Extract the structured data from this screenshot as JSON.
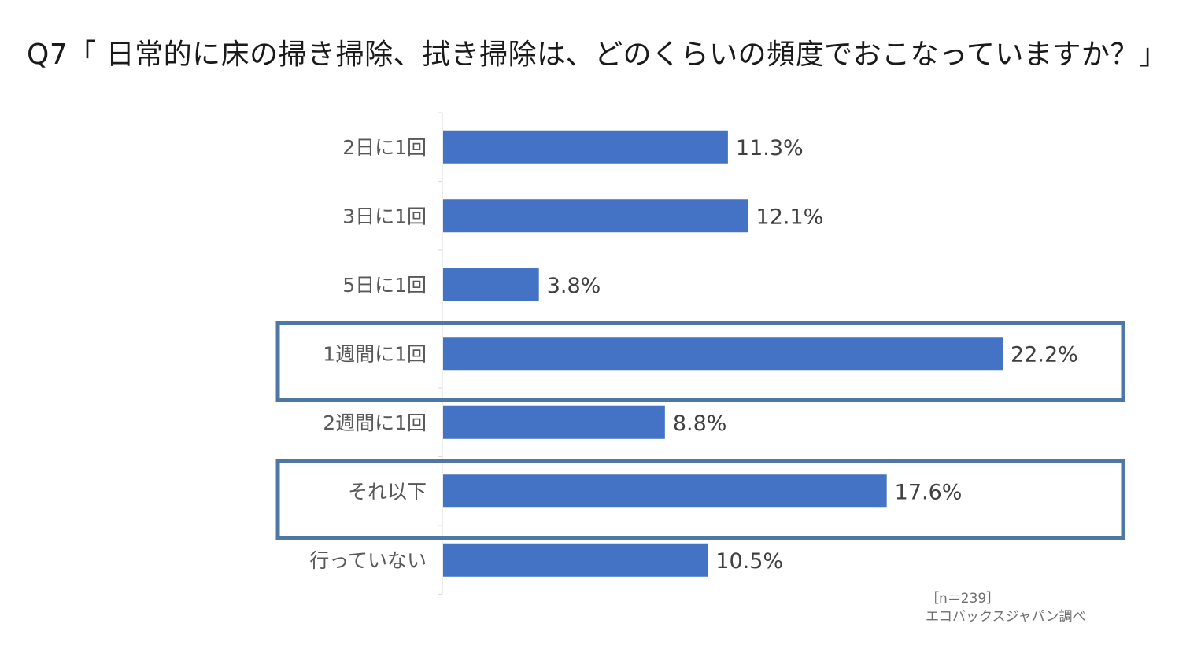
{
  "chart_data": {
    "type": "bar",
    "orientation": "horizontal",
    "title": "Q7「 日常的に床の掃き掃除、拭き掃除は、どのくらいの頻度でおこなっていますか？」",
    "categories": [
      "2日に1回",
      "3日に1回",
      "5日に1回",
      "1週間に1回",
      "2週間に1回",
      "それ以下",
      "行っていない"
    ],
    "values": [
      11.3,
      12.1,
      3.8,
      22.2,
      8.8,
      17.6,
      10.5
    ],
    "value_labels": [
      "11.3%",
      "12.1%",
      "3.8%",
      "22.2%",
      "8.8%",
      "17.6%",
      "10.5%"
    ],
    "highlighted_categories": [
      "1週間に1回",
      "それ以下"
    ],
    "unit": "%",
    "xlim": [
      0,
      25
    ],
    "grid": false,
    "bar_color": "#4472c4",
    "highlight_color": "#4e77a3"
  },
  "notes": {
    "sample": "［n＝239］",
    "source": "エコバックスジャパン調べ"
  }
}
